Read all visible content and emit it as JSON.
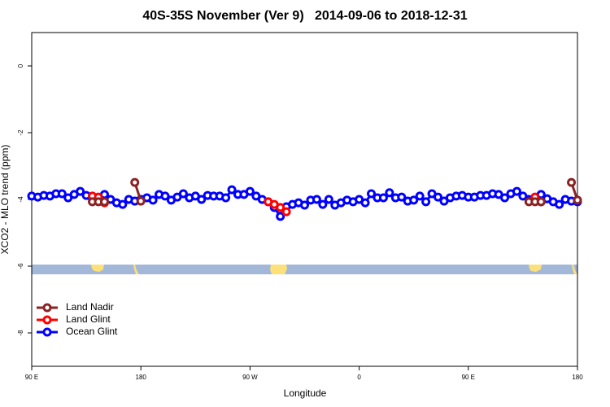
{
  "chart_data": {
    "type": "line",
    "title": "40S-35S November (Ver 9)   2014-09-06 to 2018-12-31",
    "x_label": "Longitude",
    "y_label": "XCO2 - MLO trend (ppm)",
    "xlim": [
      90,
      540
    ],
    "ylim": [
      -9,
      1
    ],
    "xticks": [
      {
        "value": 90,
        "label": "90 E"
      },
      180,
      {
        "value": 270,
        "label": "90 W"
      },
      {
        "value": 360,
        "label": "0"
      },
      {
        "value": 450,
        "label": "90 E"
      },
      {
        "value": 540,
        "label": "180"
      }
    ],
    "yticks": [
      0,
      -2,
      -4,
      -6,
      -8
    ],
    "legend": "bottom-left",
    "series": [
      {
        "name": "Land Nadir",
        "color": "#8b2323",
        "x": [
          140,
          145,
          150,
          155,
          175,
          180,
          185,
          500,
          505,
          510,
          515,
          535,
          540
        ],
        "values": [
          -4.07,
          -4.07,
          -4.07,
          null,
          -3.49,
          -4.05,
          null,
          -4.07,
          -4.07,
          -4.07,
          null,
          -3.49,
          -4.02
        ]
      },
      {
        "name": "Land Glint",
        "color": "#ff0000",
        "x": [
          140,
          145,
          150,
          155,
          285,
          290,
          295,
          300,
          305,
          505,
          510
        ],
        "values": [
          -3.9,
          -3.93,
          -4.1,
          null,
          -4.07,
          -4.15,
          -4.24,
          -4.37,
          null,
          -3.93,
          -4.07
        ]
      },
      {
        "name": "Ocean Glint",
        "color": "#0000ff",
        "x": [
          90,
          95,
          100,
          105,
          110,
          115,
          120,
          125,
          130,
          135,
          140,
          145,
          150,
          155,
          160,
          165,
          170,
          175,
          180,
          185,
          190,
          195,
          200,
          205,
          210,
          215,
          220,
          225,
          230,
          235,
          240,
          245,
          250,
          255,
          260,
          265,
          270,
          275,
          280,
          285,
          290,
          295,
          300,
          305,
          310,
          315,
          320,
          325,
          330,
          335,
          340,
          345,
          350,
          355,
          360,
          365,
          370,
          375,
          380,
          385,
          390,
          395,
          400,
          405,
          410,
          415,
          420,
          425,
          430,
          435,
          440,
          445,
          450,
          455,
          460,
          465,
          470,
          475,
          480,
          485,
          490,
          495,
          500,
          505,
          510,
          515,
          520,
          525,
          530,
          535,
          540
        ],
        "values": [
          -3.9,
          -3.93,
          -3.88,
          -3.9,
          -3.83,
          -3.83,
          -3.95,
          -3.85,
          -3.76,
          -3.88,
          -3.98,
          -3.95,
          -3.85,
          -4.0,
          -4.1,
          -4.15,
          -4.0,
          -4.05,
          -4.0,
          -3.95,
          -4.02,
          -3.85,
          -3.9,
          -4.02,
          -3.93,
          -3.83,
          -3.95,
          -3.9,
          -4.0,
          -3.88,
          -3.9,
          -3.9,
          -3.95,
          -3.71,
          -3.85,
          -3.85,
          -3.76,
          -3.9,
          -4.0,
          -4.07,
          -4.24,
          -4.51,
          -4.22,
          -4.15,
          -4.1,
          -4.17,
          -4.02,
          -4.0,
          -4.15,
          -4.0,
          -4.17,
          -4.1,
          -4.02,
          -4.07,
          -4.0,
          -4.1,
          -3.83,
          -3.95,
          -3.95,
          -3.8,
          -3.95,
          -3.93,
          -4.05,
          -4.02,
          -3.9,
          -4.07,
          -3.83,
          -3.93,
          -4.05,
          -3.95,
          -3.9,
          -3.88,
          -3.93,
          -3.93,
          -3.88,
          -3.88,
          -3.83,
          -3.85,
          -3.95,
          -3.83,
          -3.76,
          -3.9,
          -4.0,
          -4.0,
          -3.85,
          -3.98,
          -4.07,
          -4.15,
          -4.0,
          -4.05,
          -4.07
        ]
      }
    ]
  }
}
